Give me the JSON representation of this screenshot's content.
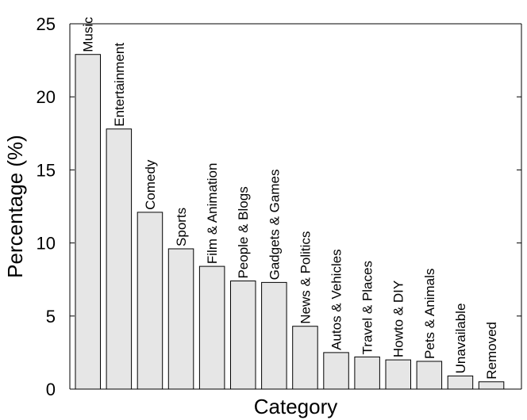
{
  "chart_data": {
    "type": "bar",
    "xlabel": "Category",
    "ylabel": "Percentage (%)",
    "ylim": [
      0,
      25
    ],
    "yticks": [
      "0",
      "5",
      "10",
      "15",
      "20",
      "25"
    ],
    "grid": false,
    "categories": [
      "Music",
      "Entertainment",
      "Comedy",
      "Sports",
      "Film & Animation",
      "People & Blogs",
      "Gadgets & Games",
      "News & Politics",
      "Autos & Vehicles",
      "Travel & Places",
      "Howto & DIY",
      "Pets & Animals",
      "Unavailable",
      "Removed"
    ],
    "values": [
      22.9,
      17.8,
      12.1,
      9.6,
      8.4,
      7.4,
      7.3,
      4.3,
      2.5,
      2.2,
      2.0,
      1.9,
      0.9,
      0.5
    ],
    "colors": {
      "bar_fill": "#e6e6e6",
      "bar_stroke": "#000000",
      "axis": "#000000"
    }
  }
}
